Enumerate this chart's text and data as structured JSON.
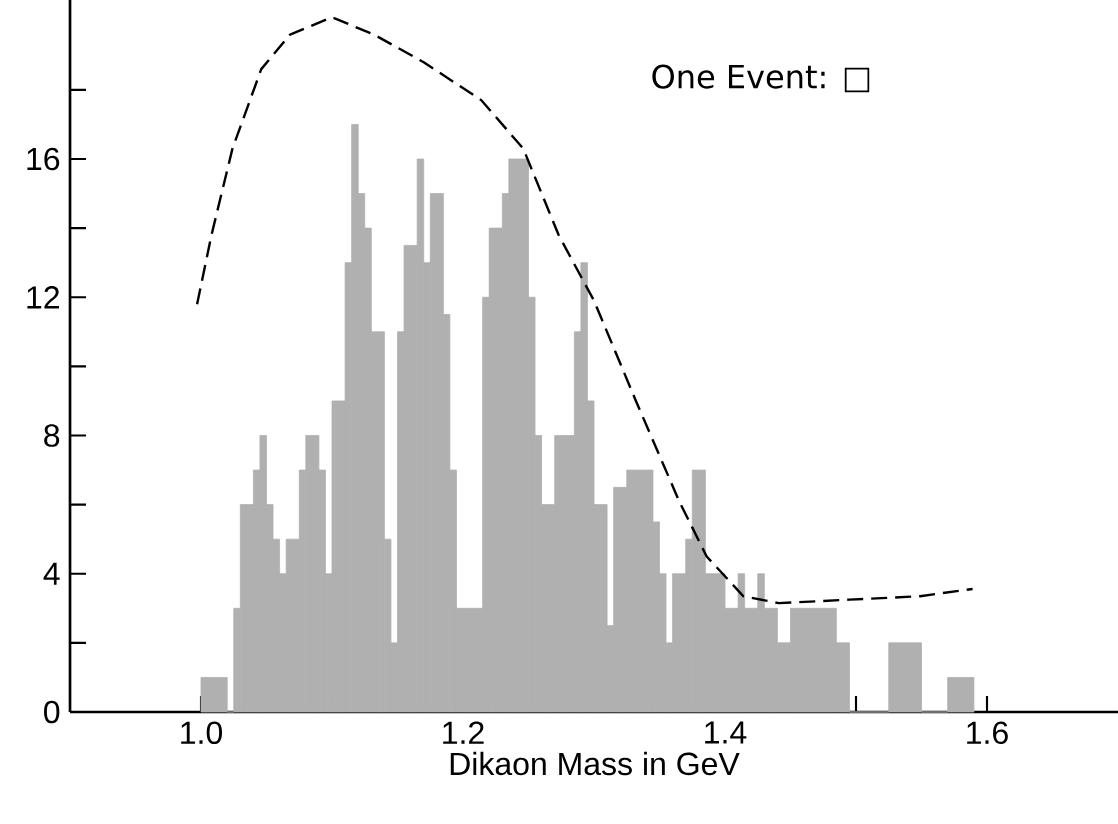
{
  "chart_data": {
    "type": "histogram",
    "xlabel": "Dikaon Mass in GeV",
    "color": "#b0b0b0",
    "bins": [
      1.0,
      1.02,
      1.025,
      1.03,
      1.04,
      1.045,
      1.05,
      1.055,
      1.06,
      1.065,
      1.075,
      1.08,
      1.09,
      1.095,
      1.1,
      1.11,
      1.115,
      1.12,
      1.125,
      1.13,
      1.14,
      1.145,
      1.15,
      1.155,
      1.165,
      1.17,
      1.175,
      1.185,
      1.19,
      1.195,
      1.215,
      1.22,
      1.23,
      1.235,
      1.25,
      1.255,
      1.26,
      1.27,
      1.285,
      1.29,
      1.295,
      1.3,
      1.31,
      1.315,
      1.325,
      1.345,
      1.35,
      1.355,
      1.36,
      1.37,
      1.375,
      1.385,
      1.4,
      1.41,
      1.415,
      1.425,
      1.43,
      1.44,
      1.45,
      1.485,
      1.495,
      1.525,
      1.55,
      1.57,
      1.59
    ],
    "values": [
      1,
      0,
      3,
      6,
      7,
      8,
      6,
      5,
      4,
      5,
      7,
      8,
      7,
      4,
      9,
      13,
      17,
      15,
      14,
      11,
      5,
      2,
      11,
      13.5,
      16,
      13,
      15,
      11.5,
      7,
      3,
      12,
      14,
      15,
      16,
      12,
      8,
      6,
      8,
      11,
      13,
      9,
      6,
      2.5,
      6.5,
      7,
      5.5,
      4,
      2,
      4,
      5,
      7,
      4,
      3,
      4,
      3,
      4,
      3,
      2,
      3,
      2,
      0,
      2,
      0,
      1
    ],
    "series": [
      {
        "type": "line",
        "color": "#000000",
        "line_style": "dashed",
        "x": [
          0.997,
          1.008,
          1.024,
          1.046,
          1.068,
          1.1,
          1.132,
          1.17,
          1.214,
          1.246,
          1.273,
          1.3,
          1.332,
          1.365,
          1.386,
          1.414,
          1.441,
          1.495,
          1.549,
          1.589
        ],
        "values": [
          11.8,
          13.8,
          16.3,
          18.6,
          19.6,
          20.1,
          19.6,
          18.8,
          17.7,
          16.3,
          13.8,
          11.9,
          9.0,
          6.1,
          4.5,
          3.35,
          3.15,
          3.25,
          3.35,
          3.56
        ]
      }
    ],
    "xlim": [
      0.9,
      1.7
    ],
    "ylim": [
      0,
      20.6
    ],
    "xticks": [
      {
        "value": 1.0,
        "label": "1.0"
      },
      {
        "value": 1.1,
        "label": null
      },
      1.2,
      {
        "value": 1.3,
        "label": null
      },
      1.4,
      {
        "value": 1.5,
        "label": null
      },
      1.6
    ],
    "yticks": [
      0,
      {
        "value": 2,
        "label": null
      },
      4,
      {
        "value": 6,
        "label": null
      },
      8,
      {
        "value": 10,
        "label": null
      },
      12,
      {
        "value": 14,
        "label": null
      },
      16,
      {
        "value": 18,
        "label": null
      }
    ],
    "annotations": [
      "One Event: □"
    ],
    "grid": false
  }
}
